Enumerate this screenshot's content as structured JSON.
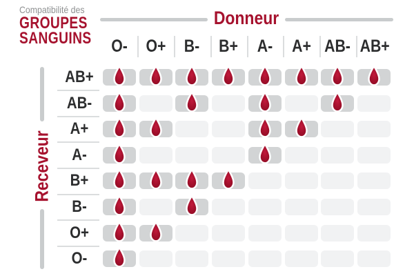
{
  "title": {
    "line1": "Compatibilité des",
    "line2": "GROUPES",
    "line3": "SANGUINS"
  },
  "donor_label": "Donneur",
  "receiver_label": "Receveur",
  "colors": {
    "background": "#FFFFFF",
    "crimson": "#A6122E",
    "subtitle_gray": "#8F9192",
    "bar_gray": "#C9CCCD",
    "cell_filled": "#D2D4D5",
    "cell_empty": "#F1F2F3",
    "divider_gray": "#DBDDDE",
    "label_dark": "#2C2D2E",
    "drop_highlight": "#C21A3C",
    "drop_main": "#A3102C",
    "drop_edge": "#8E0C24"
  },
  "chart_data": {
    "type": "heatmap",
    "title": "Compatibilité des groupes sanguins",
    "xlabel": "Donneur",
    "ylabel": "Receveur",
    "columns": [
      "O-",
      "O+",
      "B-",
      "B+",
      "A-",
      "A+",
      "AB-",
      "AB+"
    ],
    "rows": [
      "AB+",
      "AB-",
      "A+",
      "A-",
      "B+",
      "B-",
      "O+",
      "O-"
    ],
    "cell_true_marker": "blood-drop",
    "matrix": [
      [
        1,
        1,
        1,
        1,
        1,
        1,
        1,
        1
      ],
      [
        1,
        0,
        1,
        0,
        1,
        0,
        1,
        0
      ],
      [
        1,
        1,
        0,
        0,
        1,
        1,
        0,
        0
      ],
      [
        1,
        0,
        0,
        0,
        1,
        0,
        0,
        0
      ],
      [
        1,
        1,
        1,
        1,
        0,
        0,
        0,
        0
      ],
      [
        1,
        0,
        1,
        0,
        0,
        0,
        0,
        0
      ],
      [
        1,
        1,
        0,
        0,
        0,
        0,
        0,
        0
      ],
      [
        1,
        0,
        0,
        0,
        0,
        0,
        0,
        0
      ]
    ]
  }
}
